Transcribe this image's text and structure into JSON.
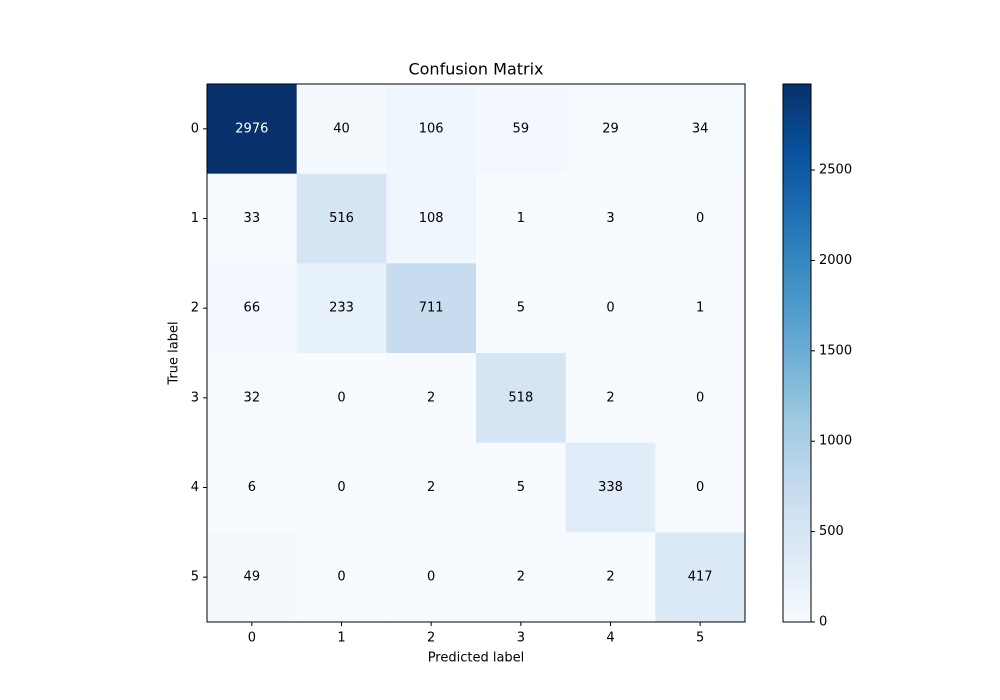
{
  "chart_data": {
    "type": "heatmap",
    "title": "Confusion Matrix",
    "xlabel": "Predicted label",
    "ylabel": "True label",
    "x": [
      "0",
      "1",
      "2",
      "3",
      "4",
      "5"
    ],
    "y": [
      "0",
      "1",
      "2",
      "3",
      "4",
      "5"
    ],
    "z": [
      [
        2976,
        40,
        106,
        59,
        29,
        34
      ],
      [
        33,
        516,
        108,
        1,
        3,
        0
      ],
      [
        66,
        233,
        711,
        5,
        0,
        1
      ],
      [
        32,
        0,
        2,
        518,
        2,
        0
      ],
      [
        6,
        0,
        2,
        5,
        338,
        0
      ],
      [
        49,
        0,
        0,
        2,
        2,
        417
      ]
    ],
    "zlim": [
      0,
      2976
    ],
    "zticks": [
      0,
      500,
      1000,
      1500,
      2000,
      2500
    ],
    "colors": [
      "#f7fbff",
      "#deebf7",
      "#c6dbef",
      "#9ecae1",
      "#6baed6",
      "#4292c6",
      "#2171b5",
      "#08519c",
      "#08306b"
    ]
  }
}
